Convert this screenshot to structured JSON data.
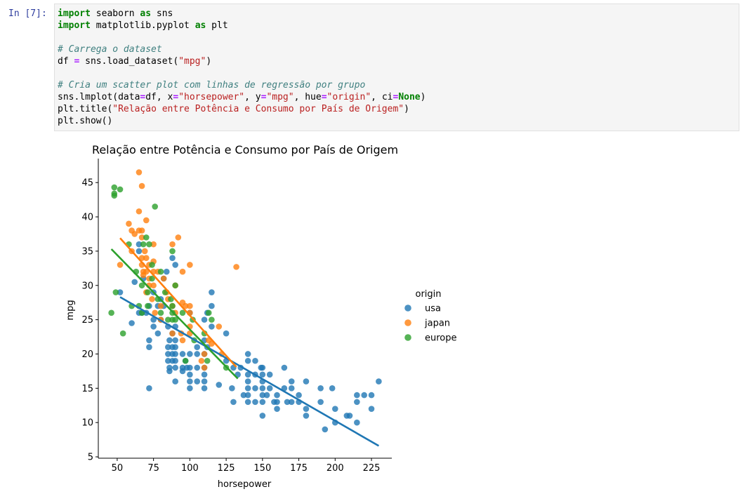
{
  "cell": {
    "prompt": "In [7]:",
    "code_lines": [
      [
        {
          "t": "import",
          "c": "kw"
        },
        {
          "t": " seaborn ",
          "c": ""
        },
        {
          "t": "as",
          "c": "kw"
        },
        {
          "t": " sns",
          "c": ""
        }
      ],
      [
        {
          "t": "import",
          "c": "kw"
        },
        {
          "t": " matplotlib.pyplot ",
          "c": ""
        },
        {
          "t": "as",
          "c": "kw"
        },
        {
          "t": " plt",
          "c": ""
        }
      ],
      [],
      [
        {
          "t": "# Carrega o dataset",
          "c": "cm"
        }
      ],
      [
        {
          "t": "df ",
          "c": ""
        },
        {
          "t": "=",
          "c": "op"
        },
        {
          "t": " sns.load_dataset(",
          "c": ""
        },
        {
          "t": "\"mpg\"",
          "c": "str"
        },
        {
          "t": ")",
          "c": ""
        }
      ],
      [],
      [
        {
          "t": "# Cria um scatter plot com linhas de regressão por grupo",
          "c": "cm"
        }
      ],
      [
        {
          "t": "sns.lmplot(data",
          "c": ""
        },
        {
          "t": "=",
          "c": "op"
        },
        {
          "t": "df, x",
          "c": ""
        },
        {
          "t": "=",
          "c": "op"
        },
        {
          "t": "\"horsepower\"",
          "c": "str"
        },
        {
          "t": ", y",
          "c": ""
        },
        {
          "t": "=",
          "c": "op"
        },
        {
          "t": "\"mpg\"",
          "c": "str"
        },
        {
          "t": ", hue",
          "c": ""
        },
        {
          "t": "=",
          "c": "op"
        },
        {
          "t": "\"origin\"",
          "c": "str"
        },
        {
          "t": ", ci",
          "c": ""
        },
        {
          "t": "=",
          "c": "op"
        },
        {
          "t": "None",
          "c": "kw"
        },
        {
          "t": ")",
          "c": ""
        }
      ],
      [
        {
          "t": "plt.title(",
          "c": ""
        },
        {
          "t": "\"Relação entre Potência e Consumo por País de Origem\"",
          "c": "str"
        },
        {
          "t": ")",
          "c": ""
        }
      ],
      [
        {
          "t": "plt.show()",
          "c": ""
        }
      ]
    ]
  },
  "chart_data": {
    "type": "scatter",
    "title": "Relação entre Potência e Consumo por País de Origem",
    "xlabel": "horsepower",
    "ylabel": "mpg",
    "xlim": [
      37,
      239
    ],
    "ylim": [
      4.8,
      48.5
    ],
    "xticks": [
      50,
      75,
      100,
      125,
      150,
      175,
      200,
      225
    ],
    "yticks": [
      5,
      10,
      15,
      20,
      25,
      30,
      35,
      40,
      45
    ],
    "legend": {
      "title": "origin",
      "placement": "right"
    },
    "series": [
      {
        "name": "usa",
        "color": "#1f77b4",
        "regression": [
          [
            52,
            28.3
          ],
          [
            230,
            6.6
          ]
        ],
        "points": [
          [
            52,
            29
          ],
          [
            60,
            24.5
          ],
          [
            62,
            30.5
          ],
          [
            65,
            36
          ],
          [
            65,
            35
          ],
          [
            65,
            26
          ],
          [
            67,
            26
          ],
          [
            68,
            31
          ],
          [
            70,
            26
          ],
          [
            72,
            27
          ],
          [
            72,
            22
          ],
          [
            72,
            21
          ],
          [
            72,
            15
          ],
          [
            75,
            25
          ],
          [
            75,
            24
          ],
          [
            75,
            29
          ],
          [
            78,
            27
          ],
          [
            78,
            23
          ],
          [
            80,
            28
          ],
          [
            80,
            25
          ],
          [
            82,
            27
          ],
          [
            82,
            31
          ],
          [
            84,
            32
          ],
          [
            85,
            24
          ],
          [
            85,
            20
          ],
          [
            85,
            21
          ],
          [
            85,
            19
          ],
          [
            86,
            22
          ],
          [
            86,
            18
          ],
          [
            86,
            17.5
          ],
          [
            88,
            23
          ],
          [
            88,
            21
          ],
          [
            88,
            20
          ],
          [
            88,
            19
          ],
          [
            88,
            34
          ],
          [
            90,
            33
          ],
          [
            90,
            24
          ],
          [
            90,
            22
          ],
          [
            90,
            21
          ],
          [
            90,
            20
          ],
          [
            90,
            18
          ],
          [
            90,
            16
          ],
          [
            90,
            19
          ],
          [
            95,
            20
          ],
          [
            95,
            18
          ],
          [
            95,
            17.5
          ],
          [
            97,
            19
          ],
          [
            98,
            18
          ],
          [
            100,
            26
          ],
          [
            100,
            20
          ],
          [
            100,
            18
          ],
          [
            100,
            17
          ],
          [
            100,
            16
          ],
          [
            100,
            15
          ],
          [
            105,
            18
          ],
          [
            105,
            16
          ],
          [
            105,
            21
          ],
          [
            105,
            20
          ],
          [
            110,
            22
          ],
          [
            110,
            20
          ],
          [
            110,
            18
          ],
          [
            110,
            17
          ],
          [
            110,
            16
          ],
          [
            110,
            15
          ],
          [
            110,
            25
          ],
          [
            112,
            26
          ],
          [
            112,
            21
          ],
          [
            115,
            29
          ],
          [
            115,
            27
          ],
          [
            115,
            24
          ],
          [
            120,
            15.5
          ],
          [
            125,
            23
          ],
          [
            125,
            19
          ],
          [
            129,
            15
          ],
          [
            130,
            18
          ],
          [
            130,
            13
          ],
          [
            133,
            17
          ],
          [
            135,
            18
          ],
          [
            137,
            14
          ],
          [
            140,
            20
          ],
          [
            140,
            19
          ],
          [
            140,
            17
          ],
          [
            140,
            16
          ],
          [
            140,
            15
          ],
          [
            140,
            14
          ],
          [
            140,
            13
          ],
          [
            145,
            19
          ],
          [
            145,
            17
          ],
          [
            145,
            15
          ],
          [
            145,
            13
          ],
          [
            149,
            18
          ],
          [
            150,
            18
          ],
          [
            150,
            16
          ],
          [
            150,
            15
          ],
          [
            150,
            14
          ],
          [
            150,
            13
          ],
          [
            150,
            11
          ],
          [
            150,
            17
          ],
          [
            153,
            14
          ],
          [
            155,
            17
          ],
          [
            155,
            15
          ],
          [
            158,
            13
          ],
          [
            160,
            14
          ],
          [
            160,
            13
          ],
          [
            160,
            12
          ],
          [
            165,
            18
          ],
          [
            165,
            15
          ],
          [
            167,
            13
          ],
          [
            170,
            16
          ],
          [
            170,
            15
          ],
          [
            170,
            13
          ],
          [
            175,
            14
          ],
          [
            175,
            13
          ],
          [
            180,
            16
          ],
          [
            180,
            12
          ],
          [
            180,
            11
          ],
          [
            190,
            15
          ],
          [
            190,
            13
          ],
          [
            193,
            9
          ],
          [
            198,
            15
          ],
          [
            200,
            12
          ],
          [
            200,
            10
          ],
          [
            208,
            11
          ],
          [
            210,
            11
          ],
          [
            215,
            14
          ],
          [
            215,
            13
          ],
          [
            215,
            10
          ],
          [
            220,
            14
          ],
          [
            225,
            14
          ],
          [
            225,
            12
          ],
          [
            230,
            16
          ]
        ]
      },
      {
        "name": "japan",
        "color": "#ff7f0e",
        "regression": [
          [
            52,
            36.9
          ],
          [
            132,
            18.1
          ]
        ],
        "points": [
          [
            52,
            33
          ],
          [
            58,
            39
          ],
          [
            60,
            38
          ],
          [
            60,
            35
          ],
          [
            62,
            37.5
          ],
          [
            65,
            46.5
          ],
          [
            65,
            40.8
          ],
          [
            65,
            38
          ],
          [
            67,
            44.5
          ],
          [
            67,
            38
          ],
          [
            67,
            37
          ],
          [
            67,
            34
          ],
          [
            67,
            33
          ],
          [
            68,
            32
          ],
          [
            68,
            31.5
          ],
          [
            69,
            35
          ],
          [
            70,
            39.5
          ],
          [
            70,
            34
          ],
          [
            70,
            32
          ],
          [
            70,
            29
          ],
          [
            72,
            33
          ],
          [
            72,
            31
          ],
          [
            72,
            30
          ],
          [
            74,
            28
          ],
          [
            75,
            36
          ],
          [
            75,
            33.5
          ],
          [
            75,
            32
          ],
          [
            75,
            30
          ],
          [
            76,
            26
          ],
          [
            78,
            32
          ],
          [
            80,
            25
          ],
          [
            80,
            27
          ],
          [
            82,
            31
          ],
          [
            84,
            29
          ],
          [
            85,
            28
          ],
          [
            88,
            36
          ],
          [
            88,
            27
          ],
          [
            88,
            23
          ],
          [
            90,
            30
          ],
          [
            90,
            26
          ],
          [
            92,
            37
          ],
          [
            94,
            23
          ],
          [
            95,
            32
          ],
          [
            95,
            27.5
          ],
          [
            95,
            22
          ],
          [
            97,
            27
          ],
          [
            100,
            33
          ],
          [
            100,
            27
          ],
          [
            100,
            26
          ],
          [
            100,
            24
          ],
          [
            100,
            23
          ],
          [
            108,
            19
          ],
          [
            110,
            20
          ],
          [
            110,
            18
          ],
          [
            113,
            22
          ],
          [
            115,
            21.5
          ],
          [
            120,
            24
          ],
          [
            122,
            20
          ],
          [
            132,
            32.7
          ]
        ]
      },
      {
        "name": "europe",
        "color": "#2ca02c",
        "regression": [
          [
            46,
            35.3
          ],
          [
            133,
            16.4
          ]
        ],
        "points": [
          [
            46,
            26
          ],
          [
            48,
            44.3
          ],
          [
            48,
            43.4
          ],
          [
            48,
            43.1
          ],
          [
            49,
            29
          ],
          [
            52,
            44
          ],
          [
            54,
            23
          ],
          [
            58,
            36
          ],
          [
            60,
            27
          ],
          [
            63,
            32
          ],
          [
            65,
            27
          ],
          [
            67,
            30
          ],
          [
            67,
            26
          ],
          [
            68,
            36
          ],
          [
            70,
            37
          ],
          [
            71,
            29
          ],
          [
            71,
            27
          ],
          [
            72,
            36
          ],
          [
            74,
            31
          ],
          [
            74,
            33
          ],
          [
            76,
            41.5
          ],
          [
            78,
            28
          ],
          [
            80,
            26
          ],
          [
            80,
            32
          ],
          [
            83,
            29
          ],
          [
            85,
            25
          ],
          [
            87,
            28
          ],
          [
            88,
            35
          ],
          [
            88,
            27
          ],
          [
            88,
            26
          ],
          [
            88,
            25
          ],
          [
            90,
            30
          ],
          [
            90,
            25
          ],
          [
            95,
            26
          ],
          [
            97,
            19
          ],
          [
            102,
            25
          ],
          [
            103,
            22
          ],
          [
            110,
            23
          ],
          [
            112,
            19
          ],
          [
            113,
            26
          ],
          [
            115,
            25
          ],
          [
            125,
            18
          ]
        ]
      }
    ]
  }
}
